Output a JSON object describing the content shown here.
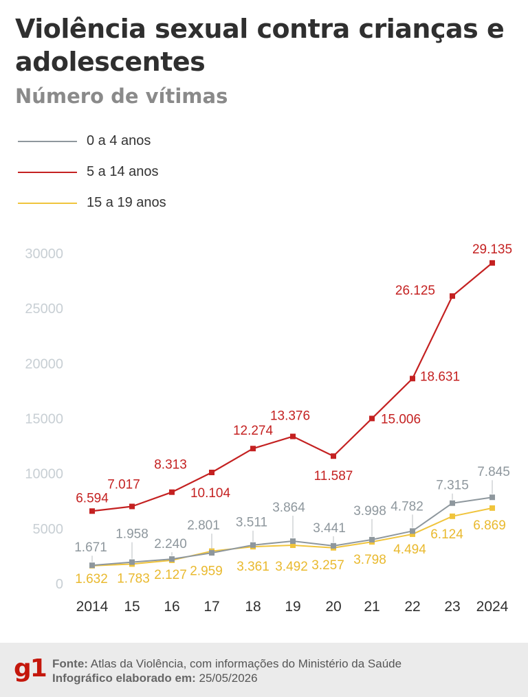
{
  "header": {
    "title": "Violência sexual contra crianças e adolescentes",
    "subtitle": "Número de vítimas"
  },
  "colors": {
    "series_0_4": "#8e979d",
    "series_5_14": "#c42121",
    "series_15_19": "#f0c43c",
    "axis_text": "#c8cfd4",
    "text_dark": "#2f2f2f",
    "brand": "#c4170c"
  },
  "footer": {
    "source_label": "Fonte:",
    "source_text": "Atlas da Violência, com informações do Ministério da Saúde",
    "date_label": "Infográfico elaborado em:",
    "date_text": "25/05/2026",
    "logo": "g1"
  },
  "chart_data": {
    "type": "line",
    "title": "Violência sexual contra crianças e adolescentes",
    "subtitle": "Número de vítimas",
    "x": [
      2014,
      2015,
      2016,
      2017,
      2018,
      2019,
      2020,
      2021,
      2022,
      2023,
      2024
    ],
    "x_tick_labels": [
      "2014",
      "15",
      "16",
      "17",
      "18",
      "19",
      "20",
      "21",
      "22",
      "23",
      "2024"
    ],
    "ylim": [
      0,
      30000
    ],
    "y_ticks": [
      0,
      5000,
      10000,
      15000,
      20000,
      25000,
      30000
    ],
    "y_tick_labels": [
      "0",
      "5000",
      "10000",
      "15000",
      "20000",
      "25000",
      "30000"
    ],
    "grid": false,
    "legend_position": "top-left",
    "series": [
      {
        "key": "s0_4",
        "name": "0 a 4 anos",
        "color": "#8e979d",
        "values": [
          1671,
          1958,
          2240,
          2801,
          3511,
          3864,
          3441,
          3998,
          4782,
          7315,
          7845
        ],
        "labels": [
          "1.671",
          "1.958",
          "2.240",
          "2.801",
          "3.511",
          "3.864",
          "3.441",
          "3.998",
          "4.782",
          "7.315",
          "7.845"
        ]
      },
      {
        "key": "s5_14",
        "name": "5 a 14 anos",
        "color": "#c42121",
        "values": [
          6594,
          7017,
          8313,
          10104,
          12274,
          13376,
          11587,
          15006,
          18631,
          26125,
          29135
        ],
        "labels": [
          "6.594",
          "7.017",
          "8.313",
          "10.104",
          "12.274",
          "13.376",
          "11.587",
          "15.006",
          "18.631",
          "26.125",
          "29.135"
        ]
      },
      {
        "key": "s15_19",
        "name": "15 a 19 anos",
        "color": "#f0c43c",
        "values": [
          1632,
          1783,
          2127,
          2959,
          3361,
          3492,
          3257,
          3798,
          4494,
          6124,
          6869
        ],
        "labels": [
          "1.632",
          "1.783",
          "2.127",
          "2.959",
          "3.361",
          "3.492",
          "3.257",
          "3.798",
          "4.494",
          "6.124",
          "6.869"
        ]
      }
    ]
  }
}
